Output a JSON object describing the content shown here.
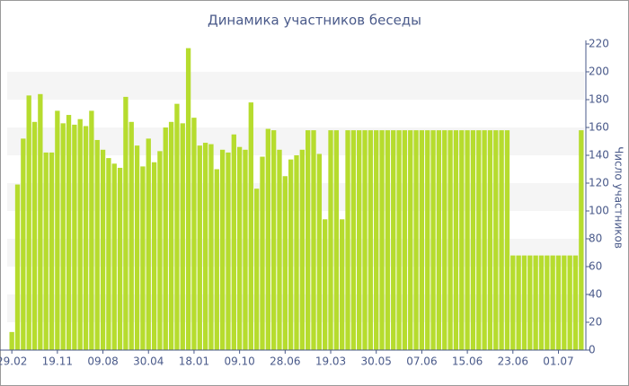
{
  "chart_data": {
    "type": "bar",
    "title": "Динамика участников беседы",
    "y_axis_label": "Число участников",
    "categories": [
      "29.02",
      null,
      null,
      null,
      null,
      null,
      null,
      null,
      "19.11",
      null,
      null,
      null,
      null,
      null,
      null,
      null,
      "09.08",
      null,
      null,
      null,
      null,
      null,
      null,
      null,
      "30.04",
      null,
      null,
      null,
      null,
      null,
      null,
      null,
      "18.01",
      null,
      null,
      null,
      null,
      null,
      null,
      null,
      "09.10",
      null,
      null,
      null,
      null,
      null,
      null,
      null,
      "28.06",
      null,
      null,
      null,
      null,
      null,
      null,
      null,
      "19.03",
      null,
      null,
      null,
      null,
      null,
      null,
      null,
      "30.05",
      null,
      null,
      null,
      null,
      null,
      null,
      null,
      "07.06",
      null,
      null,
      null,
      null,
      null,
      null,
      null,
      "15.06",
      null,
      null,
      null,
      null,
      null,
      null,
      null,
      "23.06",
      null,
      null,
      null,
      null,
      null,
      null,
      null,
      "01.07",
      null,
      null,
      null,
      null
    ],
    "values": [
      13,
      119,
      152,
      183,
      164,
      184,
      142,
      142,
      172,
      163,
      169,
      162,
      166,
      161,
      172,
      151,
      144,
      138,
      134,
      131,
      182,
      164,
      147,
      132,
      152,
      135,
      143,
      160,
      164,
      177,
      163,
      217,
      167,
      147,
      149,
      148,
      130,
      144,
      142,
      155,
      146,
      144,
      178,
      116,
      139,
      159,
      158,
      144,
      125,
      137,
      140,
      144,
      158,
      158,
      141,
      94,
      158,
      158,
      94,
      158,
      158,
      158,
      158,
      158,
      158,
      158,
      158,
      158,
      158,
      158,
      158,
      158,
      158,
      158,
      158,
      158,
      158,
      158,
      158,
      158,
      158,
      158,
      158,
      158,
      158,
      158,
      158,
      158,
      68,
      68,
      68,
      68,
      68,
      68,
      68,
      68,
      68,
      68,
      68,
      68,
      158
    ],
    "color": "#b6dc2e",
    "ylim": [
      0,
      220
    ],
    "yticks": [
      0,
      20,
      40,
      60,
      80,
      100,
      120,
      140,
      160,
      180,
      200,
      220
    ],
    "grid": true
  }
}
